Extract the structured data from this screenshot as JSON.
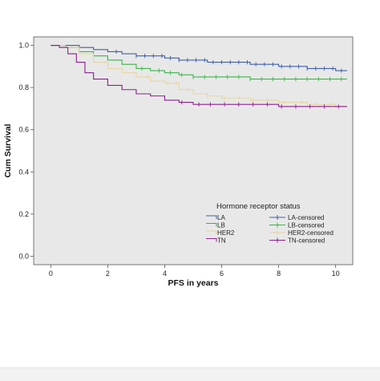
{
  "chart_data": {
    "type": "line",
    "title": "",
    "xlabel": "PFS in years",
    "ylabel": "Cum Survival",
    "xlim": [
      -0.6,
      10.6
    ],
    "ylim": [
      -0.04,
      1.04
    ],
    "x_ticks": [
      0,
      2,
      4,
      6,
      8,
      10
    ],
    "y_ticks": [
      0.0,
      0.2,
      0.4,
      0.6,
      0.8,
      1.0
    ],
    "x_tick_labels": [
      "0",
      "2",
      "4",
      "6",
      "8",
      "10"
    ],
    "y_tick_labels": [
      "0.0",
      "0.2",
      "0.4",
      "0.6",
      "0.8",
      "1.0"
    ],
    "grid": false,
    "background": "#e8e8e8",
    "legend": {
      "title": "Hormone receptor status",
      "placement": "bottom-right"
    },
    "series": [
      {
        "name": "LA",
        "censored_name": "LA-censored",
        "color": "#3f5fa8",
        "points": [
          [
            0,
            1.0
          ],
          [
            0.5,
            1.0
          ],
          [
            1.0,
            0.99
          ],
          [
            1.5,
            0.98
          ],
          [
            2.0,
            0.97
          ],
          [
            2.5,
            0.96
          ],
          [
            3.0,
            0.95
          ],
          [
            3.5,
            0.95
          ],
          [
            4.0,
            0.94
          ],
          [
            4.5,
            0.93
          ],
          [
            5.0,
            0.93
          ],
          [
            5.5,
            0.92
          ],
          [
            6.0,
            0.92
          ],
          [
            7.0,
            0.91
          ],
          [
            8.0,
            0.9
          ],
          [
            9.0,
            0.89
          ],
          [
            10.0,
            0.88
          ],
          [
            10.4,
            0.88
          ]
        ],
        "censored": [
          2.3,
          3.0,
          3.3,
          3.6,
          3.9,
          4.2,
          4.5,
          4.8,
          5.1,
          5.4,
          5.7,
          6.0,
          6.3,
          6.6,
          6.9,
          7.2,
          7.5,
          7.8,
          8.1,
          8.4,
          8.7,
          9.0,
          9.3,
          9.6,
          9.9,
          10.2
        ]
      },
      {
        "name": "LB",
        "censored_name": "LB-censored",
        "color": "#3cb44b",
        "points": [
          [
            0,
            1.0
          ],
          [
            0.5,
            0.99
          ],
          [
            1.0,
            0.97
          ],
          [
            1.5,
            0.95
          ],
          [
            2.0,
            0.93
          ],
          [
            2.5,
            0.91
          ],
          [
            3.0,
            0.89
          ],
          [
            3.5,
            0.88
          ],
          [
            4.0,
            0.87
          ],
          [
            4.5,
            0.86
          ],
          [
            5.0,
            0.85
          ],
          [
            6.0,
            0.85
          ],
          [
            7.0,
            0.84
          ],
          [
            8.0,
            0.84
          ],
          [
            9.0,
            0.84
          ],
          [
            10.0,
            0.84
          ],
          [
            10.4,
            0.84
          ]
        ],
        "censored": [
          3.2,
          3.8,
          4.2,
          4.6,
          5.0,
          5.4,
          5.8,
          6.2,
          6.6,
          7.0,
          7.4,
          7.8,
          8.2,
          8.6,
          9.0,
          9.4,
          9.8,
          10.2
        ]
      },
      {
        "name": "HER2",
        "censored_name": "HER2-censored",
        "color": "#e8d5a0",
        "points": [
          [
            0,
            1.0
          ],
          [
            0.5,
            0.99
          ],
          [
            1.0,
            0.96
          ],
          [
            1.5,
            0.92
          ],
          [
            2.0,
            0.89
          ],
          [
            2.5,
            0.87
          ],
          [
            3.0,
            0.85
          ],
          [
            3.5,
            0.83
          ],
          [
            4.0,
            0.82
          ],
          [
            4.5,
            0.79
          ],
          [
            5.0,
            0.77
          ],
          [
            5.5,
            0.76
          ],
          [
            6.0,
            0.75
          ],
          [
            7.0,
            0.74
          ],
          [
            8.0,
            0.73
          ],
          [
            9.0,
            0.72
          ],
          [
            10.0,
            0.71
          ],
          [
            10.4,
            0.71
          ]
        ],
        "censored": [
          3.4,
          4.1,
          4.4,
          4.8,
          5.5,
          6.1,
          6.6,
          7.1,
          7.6,
          8.2,
          8.8,
          9.3,
          9.9
        ]
      },
      {
        "name": "TN",
        "censored_name": "TN-censored",
        "color": "#8a1f8c",
        "points": [
          [
            0,
            1.0
          ],
          [
            0.3,
            0.99
          ],
          [
            0.6,
            0.96
          ],
          [
            0.9,
            0.92
          ],
          [
            1.2,
            0.87
          ],
          [
            1.5,
            0.84
          ],
          [
            2.0,
            0.81
          ],
          [
            2.5,
            0.79
          ],
          [
            3.0,
            0.77
          ],
          [
            3.5,
            0.76
          ],
          [
            4.0,
            0.74
          ],
          [
            4.5,
            0.73
          ],
          [
            5.0,
            0.72
          ],
          [
            6.0,
            0.72
          ],
          [
            7.0,
            0.72
          ],
          [
            8.0,
            0.71
          ],
          [
            9.0,
            0.71
          ],
          [
            10.0,
            0.71
          ],
          [
            10.4,
            0.71
          ]
        ],
        "censored": [
          4.6,
          5.2,
          5.6,
          6.1,
          6.6,
          7.1,
          7.6,
          8.1,
          8.6,
          9.1,
          9.6,
          10.1
        ]
      }
    ]
  }
}
